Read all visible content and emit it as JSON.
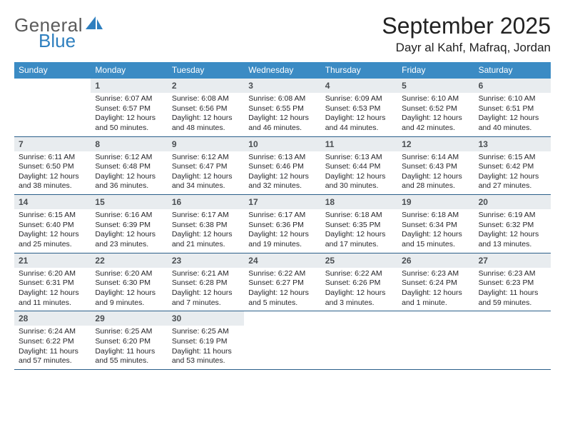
{
  "logo": {
    "line1": "General",
    "line2": "Blue"
  },
  "title": "September 2025",
  "location": "Dayr al Kahf, Mafraq, Jordan",
  "colors": {
    "header_blue": "#3b8bc4",
    "day_bg": "#e8ecef",
    "divider": "#2b5f8a",
    "logo_blue": "#2e7fbf",
    "background": "#ffffff"
  },
  "weekdays": [
    "Sunday",
    "Monday",
    "Tuesday",
    "Wednesday",
    "Thursday",
    "Friday",
    "Saturday"
  ],
  "weeks": [
    [
      {
        "day": "",
        "lines": []
      },
      {
        "day": "1",
        "lines": [
          "Sunrise: 6:07 AM",
          "Sunset: 6:57 PM",
          "Daylight: 12 hours",
          "and 50 minutes."
        ]
      },
      {
        "day": "2",
        "lines": [
          "Sunrise: 6:08 AM",
          "Sunset: 6:56 PM",
          "Daylight: 12 hours",
          "and 48 minutes."
        ]
      },
      {
        "day": "3",
        "lines": [
          "Sunrise: 6:08 AM",
          "Sunset: 6:55 PM",
          "Daylight: 12 hours",
          "and 46 minutes."
        ]
      },
      {
        "day": "4",
        "lines": [
          "Sunrise: 6:09 AM",
          "Sunset: 6:53 PM",
          "Daylight: 12 hours",
          "and 44 minutes."
        ]
      },
      {
        "day": "5",
        "lines": [
          "Sunrise: 6:10 AM",
          "Sunset: 6:52 PM",
          "Daylight: 12 hours",
          "and 42 minutes."
        ]
      },
      {
        "day": "6",
        "lines": [
          "Sunrise: 6:10 AM",
          "Sunset: 6:51 PM",
          "Daylight: 12 hours",
          "and 40 minutes."
        ]
      }
    ],
    [
      {
        "day": "7",
        "lines": [
          "Sunrise: 6:11 AM",
          "Sunset: 6:50 PM",
          "Daylight: 12 hours",
          "and 38 minutes."
        ]
      },
      {
        "day": "8",
        "lines": [
          "Sunrise: 6:12 AM",
          "Sunset: 6:48 PM",
          "Daylight: 12 hours",
          "and 36 minutes."
        ]
      },
      {
        "day": "9",
        "lines": [
          "Sunrise: 6:12 AM",
          "Sunset: 6:47 PM",
          "Daylight: 12 hours",
          "and 34 minutes."
        ]
      },
      {
        "day": "10",
        "lines": [
          "Sunrise: 6:13 AM",
          "Sunset: 6:46 PM",
          "Daylight: 12 hours",
          "and 32 minutes."
        ]
      },
      {
        "day": "11",
        "lines": [
          "Sunrise: 6:13 AM",
          "Sunset: 6:44 PM",
          "Daylight: 12 hours",
          "and 30 minutes."
        ]
      },
      {
        "day": "12",
        "lines": [
          "Sunrise: 6:14 AM",
          "Sunset: 6:43 PM",
          "Daylight: 12 hours",
          "and 28 minutes."
        ]
      },
      {
        "day": "13",
        "lines": [
          "Sunrise: 6:15 AM",
          "Sunset: 6:42 PM",
          "Daylight: 12 hours",
          "and 27 minutes."
        ]
      }
    ],
    [
      {
        "day": "14",
        "lines": [
          "Sunrise: 6:15 AM",
          "Sunset: 6:40 PM",
          "Daylight: 12 hours",
          "and 25 minutes."
        ]
      },
      {
        "day": "15",
        "lines": [
          "Sunrise: 6:16 AM",
          "Sunset: 6:39 PM",
          "Daylight: 12 hours",
          "and 23 minutes."
        ]
      },
      {
        "day": "16",
        "lines": [
          "Sunrise: 6:17 AM",
          "Sunset: 6:38 PM",
          "Daylight: 12 hours",
          "and 21 minutes."
        ]
      },
      {
        "day": "17",
        "lines": [
          "Sunrise: 6:17 AM",
          "Sunset: 6:36 PM",
          "Daylight: 12 hours",
          "and 19 minutes."
        ]
      },
      {
        "day": "18",
        "lines": [
          "Sunrise: 6:18 AM",
          "Sunset: 6:35 PM",
          "Daylight: 12 hours",
          "and 17 minutes."
        ]
      },
      {
        "day": "19",
        "lines": [
          "Sunrise: 6:18 AM",
          "Sunset: 6:34 PM",
          "Daylight: 12 hours",
          "and 15 minutes."
        ]
      },
      {
        "day": "20",
        "lines": [
          "Sunrise: 6:19 AM",
          "Sunset: 6:32 PM",
          "Daylight: 12 hours",
          "and 13 minutes."
        ]
      }
    ],
    [
      {
        "day": "21",
        "lines": [
          "Sunrise: 6:20 AM",
          "Sunset: 6:31 PM",
          "Daylight: 12 hours",
          "and 11 minutes."
        ]
      },
      {
        "day": "22",
        "lines": [
          "Sunrise: 6:20 AM",
          "Sunset: 6:30 PM",
          "Daylight: 12 hours",
          "and 9 minutes."
        ]
      },
      {
        "day": "23",
        "lines": [
          "Sunrise: 6:21 AM",
          "Sunset: 6:28 PM",
          "Daylight: 12 hours",
          "and 7 minutes."
        ]
      },
      {
        "day": "24",
        "lines": [
          "Sunrise: 6:22 AM",
          "Sunset: 6:27 PM",
          "Daylight: 12 hours",
          "and 5 minutes."
        ]
      },
      {
        "day": "25",
        "lines": [
          "Sunrise: 6:22 AM",
          "Sunset: 6:26 PM",
          "Daylight: 12 hours",
          "and 3 minutes."
        ]
      },
      {
        "day": "26",
        "lines": [
          "Sunrise: 6:23 AM",
          "Sunset: 6:24 PM",
          "Daylight: 12 hours",
          "and 1 minute."
        ]
      },
      {
        "day": "27",
        "lines": [
          "Sunrise: 6:23 AM",
          "Sunset: 6:23 PM",
          "Daylight: 11 hours",
          "and 59 minutes."
        ]
      }
    ],
    [
      {
        "day": "28",
        "lines": [
          "Sunrise: 6:24 AM",
          "Sunset: 6:22 PM",
          "Daylight: 11 hours",
          "and 57 minutes."
        ]
      },
      {
        "day": "29",
        "lines": [
          "Sunrise: 6:25 AM",
          "Sunset: 6:20 PM",
          "Daylight: 11 hours",
          "and 55 minutes."
        ]
      },
      {
        "day": "30",
        "lines": [
          "Sunrise: 6:25 AM",
          "Sunset: 6:19 PM",
          "Daylight: 11 hours",
          "and 53 minutes."
        ]
      },
      {
        "day": "",
        "lines": []
      },
      {
        "day": "",
        "lines": []
      },
      {
        "day": "",
        "lines": []
      },
      {
        "day": "",
        "lines": []
      }
    ]
  ]
}
